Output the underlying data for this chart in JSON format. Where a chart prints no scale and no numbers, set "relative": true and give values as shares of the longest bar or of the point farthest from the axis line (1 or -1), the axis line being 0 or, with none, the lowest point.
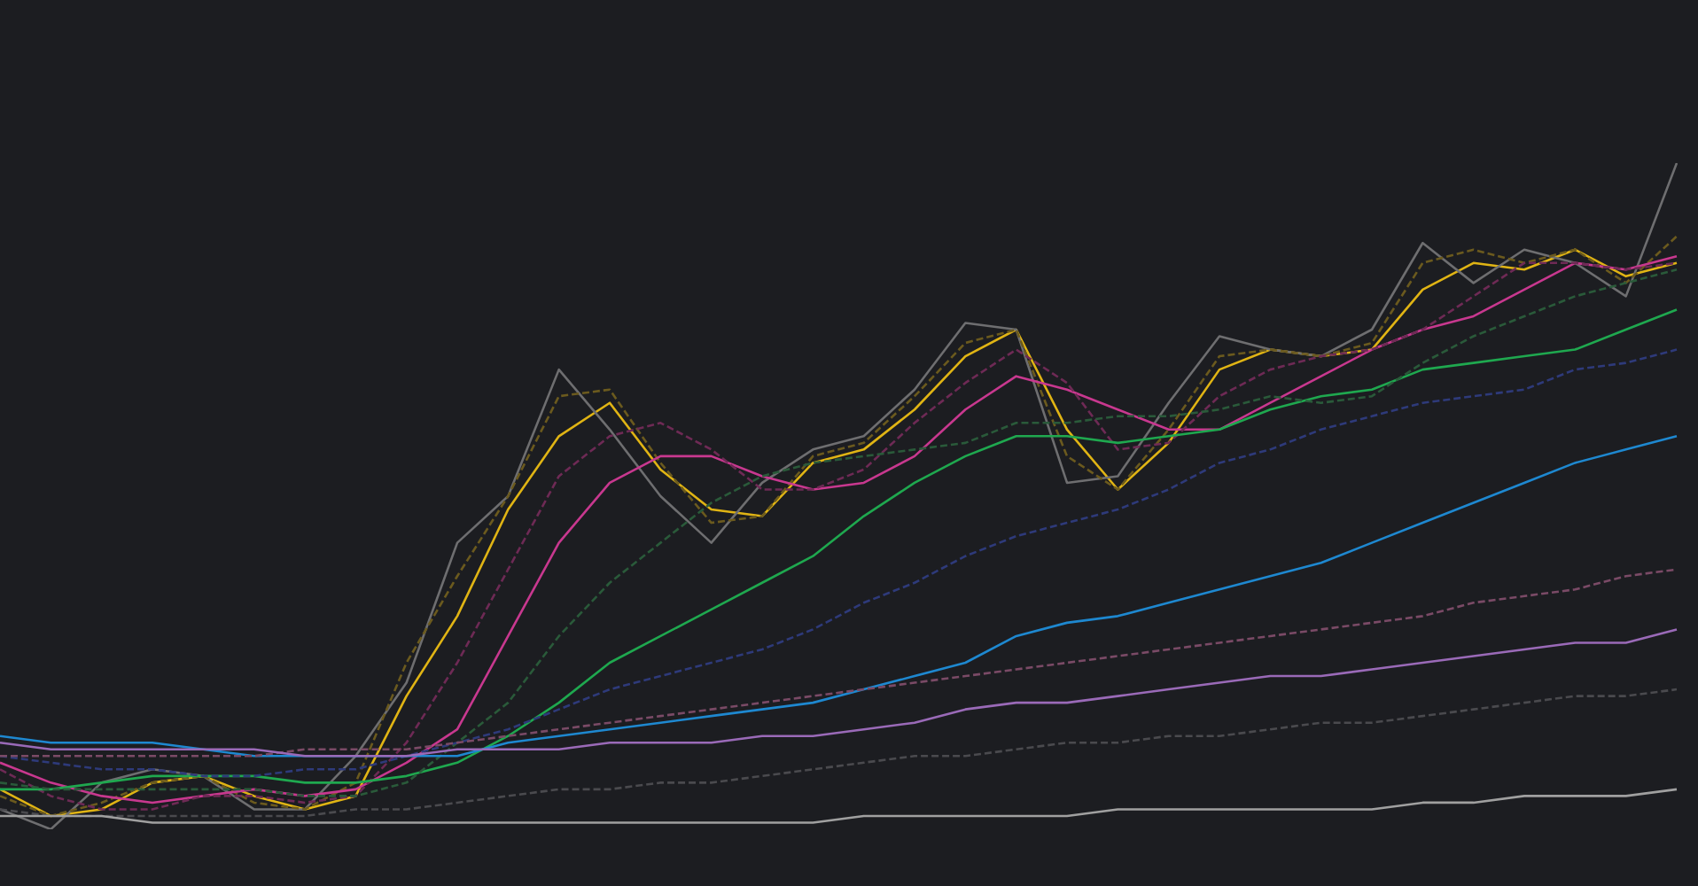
{
  "chart_data": {
    "type": "line",
    "relative": true,
    "categories": [
      null,
      null,
      null,
      null,
      null,
      null,
      null,
      null,
      null,
      null,
      null,
      null,
      null,
      null,
      null,
      null,
      null,
      null,
      null,
      null,
      null,
      null,
      null,
      null,
      null,
      null,
      null,
      null,
      null,
      null,
      null,
      null,
      null,
      null
    ],
    "series": [
      {
        "color": "#a0a0a0",
        "line_style": "solid",
        "values": [
          0.02,
          0.02,
          0.02,
          0.01,
          0.01,
          0.01,
          0.01,
          0.01,
          0.01,
          0.01,
          0.01,
          0.01,
          0.01,
          0.01,
          0.01,
          0.01,
          0.01,
          0.02,
          0.02,
          0.02,
          0.02,
          0.02,
          0.03,
          0.03,
          0.03,
          0.03,
          0.03,
          0.03,
          0.04,
          0.04,
          0.05,
          0.05,
          0.05,
          0.06
        ]
      },
      {
        "color": "#4a4a4e",
        "line_style": "dashed",
        "values": [
          0.03,
          0.02,
          0.02,
          0.02,
          0.02,
          0.02,
          0.02,
          0.03,
          0.03,
          0.04,
          0.05,
          0.06,
          0.06,
          0.07,
          0.07,
          0.08,
          0.09,
          0.1,
          0.11,
          0.11,
          0.12,
          0.13,
          0.13,
          0.14,
          0.14,
          0.15,
          0.16,
          0.16,
          0.17,
          0.18,
          0.19,
          0.2,
          0.2,
          0.21
        ]
      },
      {
        "color": "#9a6ab8",
        "line_style": "solid",
        "values": [
          0.13,
          0.12,
          0.12,
          0.12,
          0.12,
          0.12,
          0.11,
          0.11,
          0.11,
          0.12,
          0.12,
          0.12,
          0.13,
          0.13,
          0.13,
          0.14,
          0.14,
          0.15,
          0.16,
          0.18,
          0.19,
          0.19,
          0.2,
          0.21,
          0.22,
          0.23,
          0.23,
          0.24,
          0.25,
          0.26,
          0.27,
          0.28,
          0.28,
          0.3
        ]
      },
      {
        "color": "#7a4a66",
        "line_style": "dashed",
        "values": [
          0.11,
          0.11,
          0.11,
          0.11,
          0.11,
          0.11,
          0.12,
          0.12,
          0.12,
          0.13,
          0.14,
          0.15,
          0.16,
          0.17,
          0.18,
          0.19,
          0.2,
          0.21,
          0.22,
          0.23,
          0.24,
          0.25,
          0.26,
          0.27,
          0.28,
          0.29,
          0.3,
          0.31,
          0.32,
          0.34,
          0.35,
          0.36,
          0.38,
          0.39
        ]
      },
      {
        "color": "#1e88d0",
        "line_style": "solid",
        "values": [
          0.14,
          0.13,
          0.13,
          0.13,
          0.12,
          0.11,
          0.11,
          0.11,
          0.11,
          0.11,
          0.13,
          0.14,
          0.15,
          0.16,
          0.17,
          0.18,
          0.19,
          0.21,
          0.23,
          0.25,
          0.29,
          0.31,
          0.32,
          0.34,
          0.36,
          0.38,
          0.4,
          0.43,
          0.46,
          0.49,
          0.52,
          0.55,
          0.57,
          0.59
        ]
      },
      {
        "color": "#2e3a7a",
        "line_style": "dashed",
        "values": [
          0.11,
          0.1,
          0.09,
          0.09,
          0.08,
          0.08,
          0.09,
          0.09,
          0.11,
          0.13,
          0.15,
          0.18,
          0.21,
          0.23,
          0.25,
          0.27,
          0.3,
          0.34,
          0.37,
          0.41,
          0.44,
          0.46,
          0.48,
          0.51,
          0.55,
          0.57,
          0.6,
          0.62,
          0.64,
          0.65,
          0.66,
          0.69,
          0.7,
          0.72
        ]
      },
      {
        "color": "#2a5a3a",
        "line_style": "dashed",
        "values": [
          0.07,
          0.06,
          0.06,
          0.06,
          0.06,
          0.06,
          0.05,
          0.05,
          0.07,
          0.13,
          0.19,
          0.29,
          0.37,
          0.43,
          0.49,
          0.53,
          0.55,
          0.56,
          0.57,
          0.58,
          0.61,
          0.61,
          0.62,
          0.62,
          0.63,
          0.65,
          0.64,
          0.65,
          0.7,
          0.74,
          0.77,
          0.8,
          0.82,
          0.84
        ]
      },
      {
        "color": "#1fa84f",
        "line_style": "solid",
        "values": [
          0.06,
          0.06,
          0.07,
          0.08,
          0.08,
          0.08,
          0.07,
          0.07,
          0.08,
          0.1,
          0.14,
          0.19,
          0.25,
          0.29,
          0.33,
          0.37,
          0.41,
          0.47,
          0.52,
          0.56,
          0.59,
          0.59,
          0.58,
          0.59,
          0.6,
          0.63,
          0.65,
          0.66,
          0.69,
          0.7,
          0.71,
          0.72,
          0.75,
          0.78
        ]
      },
      {
        "color": "#6e2a55",
        "line_style": "dashed",
        "values": [
          0.09,
          0.05,
          0.03,
          0.03,
          0.05,
          0.05,
          0.04,
          0.05,
          0.13,
          0.25,
          0.39,
          0.53,
          0.59,
          0.61,
          0.57,
          0.51,
          0.51,
          0.54,
          0.61,
          0.67,
          0.72,
          0.67,
          0.57,
          0.58,
          0.65,
          0.69,
          0.71,
          0.72,
          0.75,
          0.8,
          0.85,
          0.85,
          0.84,
          0.85
        ]
      },
      {
        "color": "#c8388f",
        "line_style": "solid",
        "values": [
          0.1,
          0.07,
          0.05,
          0.04,
          0.05,
          0.06,
          0.05,
          0.06,
          0.1,
          0.15,
          0.29,
          0.43,
          0.52,
          0.56,
          0.56,
          0.53,
          0.51,
          0.52,
          0.56,
          0.63,
          0.68,
          0.66,
          0.63,
          0.6,
          0.6,
          0.64,
          0.68,
          0.72,
          0.75,
          0.77,
          0.81,
          0.85,
          0.84,
          0.86
        ]
      },
      {
        "color": "#6b5a1e",
        "line_style": "dashed",
        "values": [
          0.05,
          0.02,
          0.04,
          0.07,
          0.08,
          0.04,
          0.03,
          0.07,
          0.25,
          0.38,
          0.5,
          0.65,
          0.66,
          0.55,
          0.46,
          0.47,
          0.56,
          0.58,
          0.65,
          0.73,
          0.75,
          0.56,
          0.51,
          0.6,
          0.71,
          0.72,
          0.71,
          0.73,
          0.85,
          0.87,
          0.85,
          0.87,
          0.82,
          0.89
        ]
      },
      {
        "color": "#6e6e70",
        "line_style": "solid",
        "values": [
          0.03,
          0,
          0.07,
          0.09,
          0.08,
          0.03,
          0.03,
          0.11,
          0.22,
          0.43,
          0.5,
          0.69,
          0.6,
          0.5,
          0.43,
          0.52,
          0.57,
          0.59,
          0.66,
          0.76,
          0.75,
          0.52,
          0.53,
          0.64,
          0.74,
          0.72,
          0.71,
          0.75,
          0.88,
          0.82,
          0.87,
          0.85,
          0.8,
          1
        ]
      },
      {
        "color": "#e0b414",
        "line_style": "solid",
        "values": [
          0.06,
          0.02,
          0.03,
          0.07,
          0.08,
          0.05,
          0.03,
          0.05,
          0.2,
          0.32,
          0.48,
          0.59,
          0.64,
          0.54,
          0.48,
          0.47,
          0.55,
          0.57,
          0.63,
          0.71,
          0.75,
          0.6,
          0.51,
          0.58,
          0.69,
          0.72,
          0.71,
          0.72,
          0.81,
          0.85,
          0.84,
          0.87,
          0.83,
          0.85
        ]
      }
    ]
  }
}
